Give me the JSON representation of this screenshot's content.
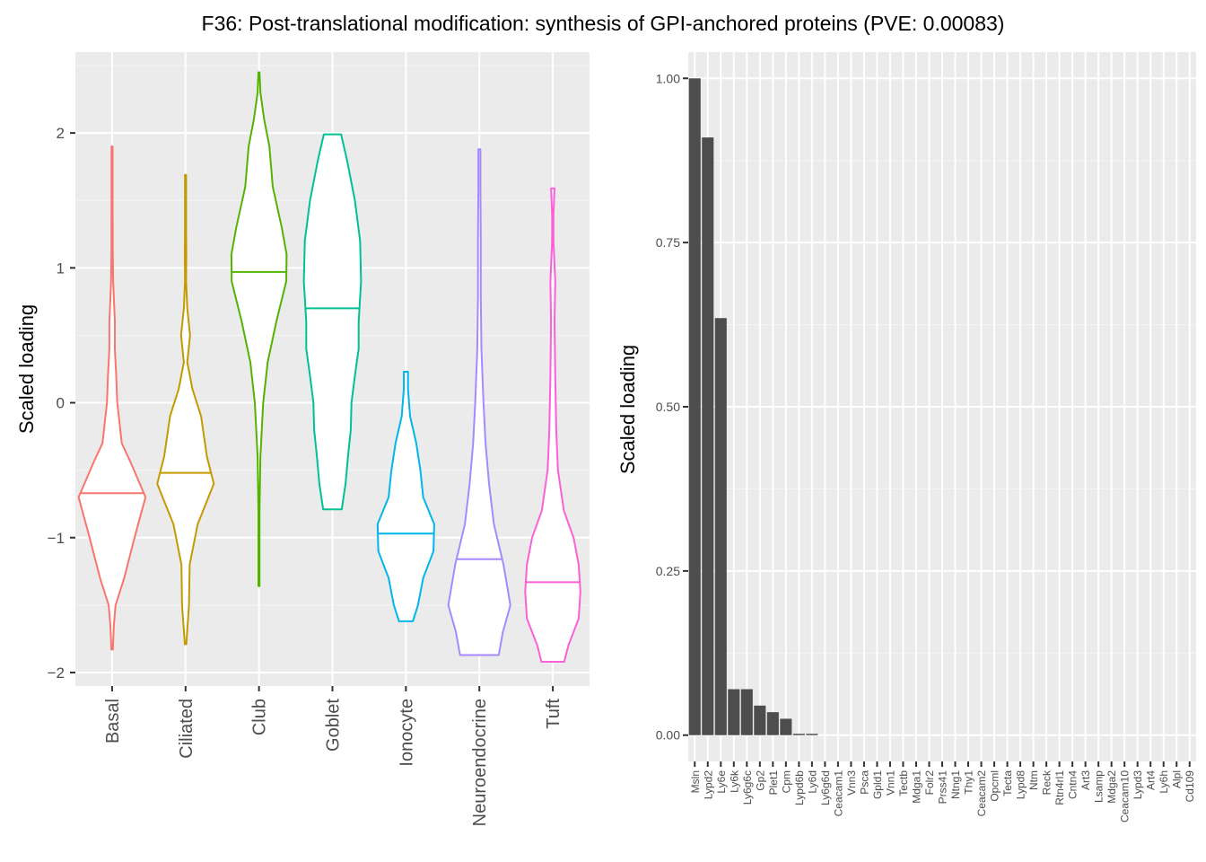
{
  "title": "F36: Post-translational modification: synthesis of GPI-anchored proteins (PVE: 0.00083)",
  "chart_data": [
    {
      "type": "violin",
      "ylabel": "Scaled loading",
      "xlabel": "",
      "ylim": [
        -2.1,
        2.6
      ],
      "yticks": [
        -2,
        -1,
        0,
        1,
        2
      ],
      "grid": true,
      "categories": [
        "Basal",
        "Ciliated",
        "Club",
        "Goblet",
        "Ionocyte",
        "Neuroendocrine",
        "Tuft"
      ],
      "colors": [
        "#F8766D",
        "#C49A00",
        "#53B400",
        "#00C094",
        "#00B6EB",
        "#A58AFF",
        "#FB61D7"
      ],
      "series": [
        {
          "name": "Basal",
          "min": -1.83,
          "max": 1.9,
          "median": -0.67,
          "profile": [
            [
              -1.83,
              0.02
            ],
            [
              -1.65,
              0.05
            ],
            [
              -1.5,
              0.1
            ],
            [
              -1.3,
              0.35
            ],
            [
              -1.0,
              0.65
            ],
            [
              -0.7,
              0.97
            ],
            [
              -0.45,
              0.55
            ],
            [
              -0.3,
              0.28
            ],
            [
              0.0,
              0.15
            ],
            [
              0.2,
              0.12
            ],
            [
              0.4,
              0.08
            ],
            [
              0.6,
              0.08
            ],
            [
              0.9,
              0.03
            ],
            [
              1.1,
              0.02
            ],
            [
              1.5,
              0.01
            ],
            [
              1.9,
              0.005
            ]
          ]
        },
        {
          "name": "Ciliated",
          "min": -1.79,
          "max": 1.69,
          "median": -0.52,
          "profile": [
            [
              -1.79,
              0.02
            ],
            [
              -1.5,
              0.1
            ],
            [
              -1.2,
              0.12
            ],
            [
              -0.9,
              0.35
            ],
            [
              -0.6,
              0.82
            ],
            [
              -0.4,
              0.62
            ],
            [
              -0.1,
              0.45
            ],
            [
              0.1,
              0.2
            ],
            [
              0.3,
              0.05
            ],
            [
              0.5,
              0.13
            ],
            [
              0.7,
              0.05
            ],
            [
              0.9,
              0.01
            ],
            [
              1.1,
              0.02
            ],
            [
              1.3,
              0.01
            ],
            [
              1.69,
              0.005
            ]
          ]
        },
        {
          "name": "Club",
          "min": -1.36,
          "max": 2.45,
          "median": 0.97,
          "profile": [
            [
              -1.36,
              0.01
            ],
            [
              -0.8,
              0.01
            ],
            [
              -0.4,
              0.04
            ],
            [
              0.0,
              0.12
            ],
            [
              0.3,
              0.25
            ],
            [
              0.6,
              0.5
            ],
            [
              0.9,
              0.79
            ],
            [
              1.1,
              0.8
            ],
            [
              1.3,
              0.66
            ],
            [
              1.6,
              0.4
            ],
            [
              1.9,
              0.3
            ],
            [
              2.1,
              0.15
            ],
            [
              2.3,
              0.04
            ],
            [
              2.45,
              0.01
            ]
          ]
        },
        {
          "name": "Goblet",
          "min": -0.79,
          "max": 1.99,
          "median": 0.7,
          "profile": [
            [
              -0.79,
              0.27
            ],
            [
              -0.6,
              0.38
            ],
            [
              -0.4,
              0.45
            ],
            [
              -0.2,
              0.53
            ],
            [
              0.0,
              0.55
            ],
            [
              0.2,
              0.65
            ],
            [
              0.4,
              0.76
            ],
            [
              0.6,
              0.76
            ],
            [
              0.9,
              0.83
            ],
            [
              1.2,
              0.8
            ],
            [
              1.5,
              0.65
            ],
            [
              1.8,
              0.42
            ],
            [
              1.99,
              0.25
            ]
          ]
        },
        {
          "name": "Ionocyte",
          "min": -1.62,
          "max": 0.23,
          "median": -0.97,
          "profile": [
            [
              -1.62,
              0.2
            ],
            [
              -1.5,
              0.35
            ],
            [
              -1.3,
              0.5
            ],
            [
              -1.1,
              0.8
            ],
            [
              -0.9,
              0.82
            ],
            [
              -0.7,
              0.5
            ],
            [
              -0.5,
              0.42
            ],
            [
              -0.3,
              0.3
            ],
            [
              -0.1,
              0.12
            ],
            [
              0.1,
              0.06
            ],
            [
              0.23,
              0.06
            ]
          ]
        },
        {
          "name": "Neuroendocrine",
          "min": -1.87,
          "max": 1.88,
          "median": -1.16,
          "profile": [
            [
              -1.87,
              0.56
            ],
            [
              -1.7,
              0.68
            ],
            [
              -1.5,
              0.9
            ],
            [
              -1.2,
              0.7
            ],
            [
              -0.9,
              0.42
            ],
            [
              -0.6,
              0.28
            ],
            [
              -0.3,
              0.18
            ],
            [
              0.0,
              0.12
            ],
            [
              0.4,
              0.06
            ],
            [
              0.8,
              0.04
            ],
            [
              1.2,
              0.04
            ],
            [
              1.6,
              0.03
            ],
            [
              1.88,
              0.03
            ]
          ]
        },
        {
          "name": "Tuft",
          "min": -1.92,
          "max": 1.59,
          "median": -1.33,
          "profile": [
            [
              -1.92,
              0.33
            ],
            [
              -1.8,
              0.45
            ],
            [
              -1.6,
              0.75
            ],
            [
              -1.4,
              0.8
            ],
            [
              -1.2,
              0.75
            ],
            [
              -1.0,
              0.6
            ],
            [
              -0.8,
              0.32
            ],
            [
              -0.5,
              0.15
            ],
            [
              -0.2,
              0.1
            ],
            [
              0.2,
              0.07
            ],
            [
              0.6,
              0.05
            ],
            [
              0.9,
              0.07
            ],
            [
              1.2,
              0.02
            ],
            [
              1.4,
              0.02
            ],
            [
              1.59,
              0.05
            ]
          ]
        }
      ]
    },
    {
      "type": "bar",
      "ylabel": "Scaled loading",
      "xlabel": "",
      "ylim": [
        -0.04,
        1.04
      ],
      "yticks": [
        0.0,
        0.25,
        0.5,
        0.75,
        1.0
      ],
      "ytick_labels": [
        "0.00",
        "0.25",
        "0.50",
        "0.75",
        "1.00"
      ],
      "grid": true,
      "bar_color": "#4d4d4d",
      "categories": [
        "Msln",
        "Lypd2",
        "Ly6e",
        "Ly6k",
        "Ly6g6c",
        "Gp2",
        "Plet1",
        "Cpm",
        "Lypd6b",
        "Ly6d",
        "Ly6g6d",
        "Ceacam1",
        "Vnn3",
        "Psca",
        "Gpld1",
        "Vnn1",
        "Tectb",
        "Mdga1",
        "Folr2",
        "Prss41",
        "Ntng1",
        "Thy1",
        "Ceacam2",
        "Opcml",
        "Tecta",
        "Lypd8",
        "Ntm",
        "Reck",
        "Rtn4rl1",
        "Cntn4",
        "Art3",
        "Lsamp",
        "Mdga2",
        "Ceacam10",
        "Lypd3",
        "Art4",
        "Ly6h",
        "Alpl",
        "Cd109"
      ],
      "values": [
        1.0,
        0.91,
        0.635,
        0.07,
        0.07,
        0.045,
        0.035,
        0.025,
        0.002,
        0.002,
        0,
        0,
        0,
        0,
        0,
        0,
        0,
        0,
        0,
        0,
        0,
        0,
        0,
        0,
        0,
        0,
        0,
        0,
        0,
        0,
        0,
        0,
        0,
        0,
        0,
        0,
        0,
        0,
        0
      ]
    }
  ]
}
